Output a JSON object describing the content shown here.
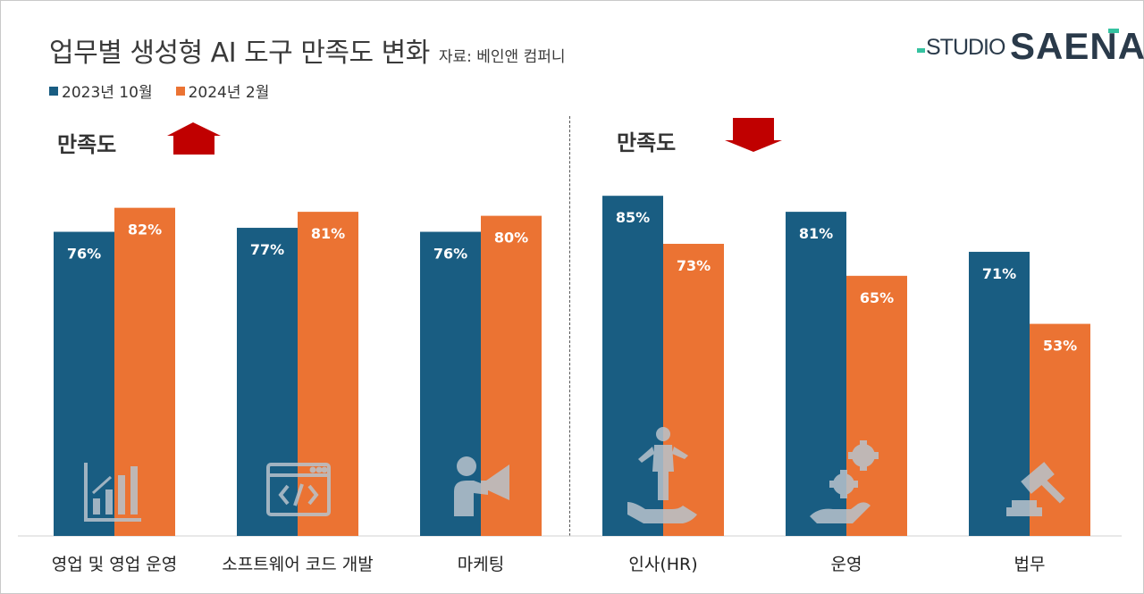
{
  "header": {
    "title": "업무별 생성형 AI 도구 만족도 변화",
    "source": "자료: 베인앤 컴퍼니"
  },
  "logo": {
    "studio": "STUDIO",
    "saena": "SAENA"
  },
  "sections": {
    "left_label": "만족도",
    "left_arrow": "up-arrow-icon",
    "right_label": "만족도",
    "right_arrow": "down-arrow-icon"
  },
  "colors": {
    "series1": "#195d82",
    "series2": "#eb7333",
    "arrow": "#c00000",
    "icon": "#b8c3cc"
  },
  "chart_data": {
    "type": "bar",
    "categories": [
      "영업 및 영업 운영",
      "소프트웨어 코드 개발",
      "마케팅",
      "인사(HR)",
      "운영",
      "법무"
    ],
    "series": [
      {
        "name": "2023년 10월",
        "values": [
          76,
          77,
          76,
          85,
          81,
          71
        ],
        "labels": [
          "76%",
          "77%",
          "76%",
          "85%",
          "81%",
          "71%"
        ]
      },
      {
        "name": "2024년 2월",
        "values": [
          82,
          81,
          80,
          73,
          65,
          53
        ],
        "labels": [
          "82%",
          "81%",
          "80%",
          "73%",
          "65%",
          "53%"
        ]
      }
    ],
    "category_icons": [
      "bar-chart-icon",
      "code-window-icon",
      "megaphone-icon",
      "person-hand-icon",
      "gears-hand-icon",
      "gavel-icon"
    ],
    "ylim": [
      0,
      100
    ],
    "unit": "%",
    "legend": "top-left"
  }
}
